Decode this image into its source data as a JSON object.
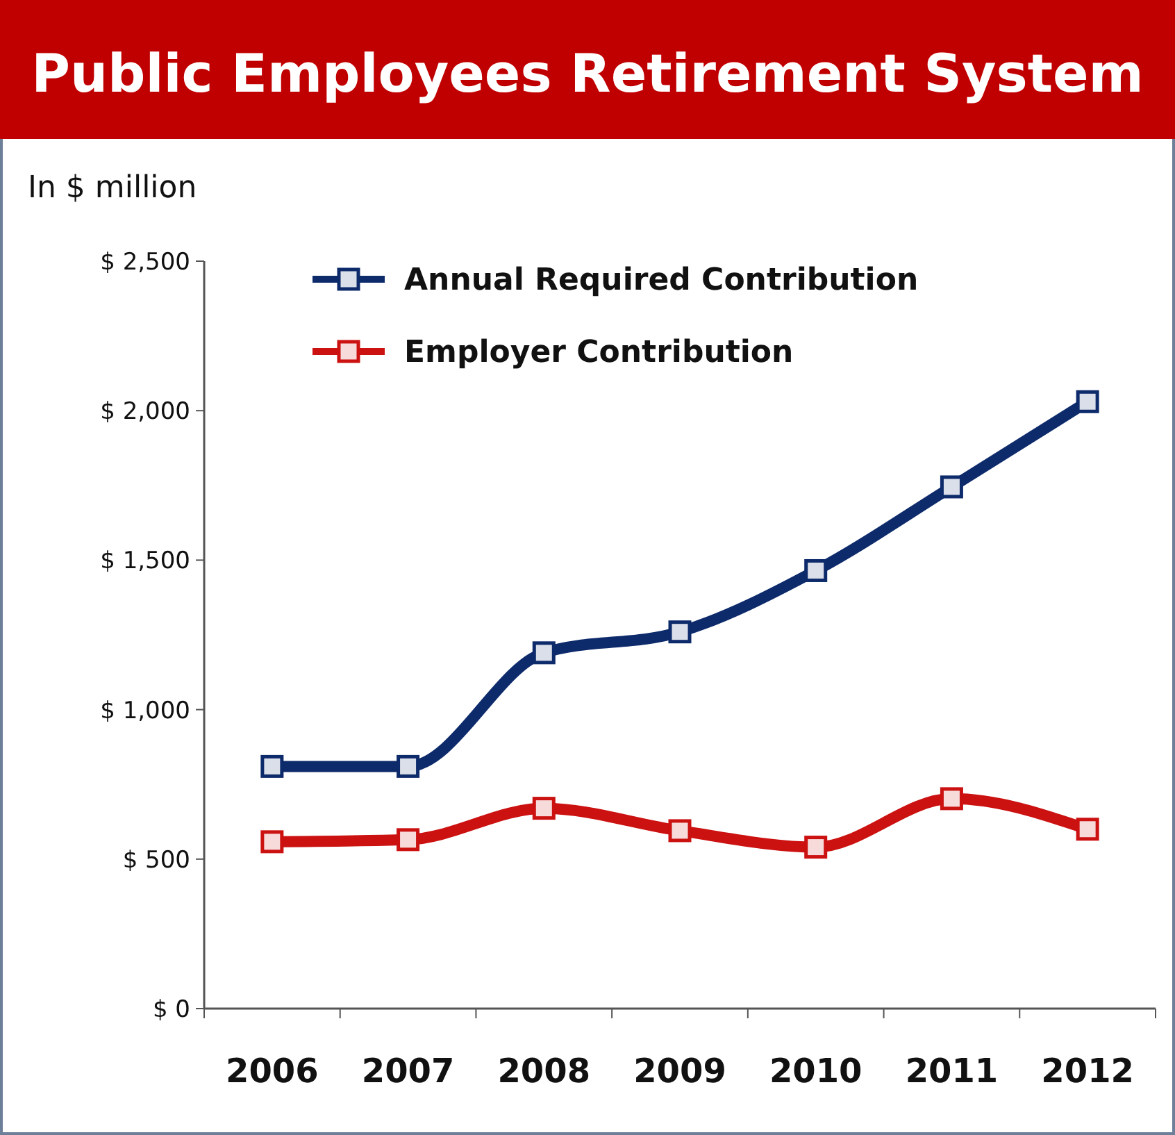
{
  "chart_data": {
    "type": "line",
    "title": "Public Employees Retirement System",
    "ylabel": "In $ million",
    "categories": [
      "2006",
      "2007",
      "2008",
      "2009",
      "2010",
      "2011",
      "2012"
    ],
    "series": [
      {
        "name": "Annual Required Contribution",
        "color": "#0d2a6b",
        "values": [
          810,
          810,
          1190,
          1260,
          1465,
          1745,
          2030
        ]
      },
      {
        "name": "Employer Contribution",
        "color": "#cc1111",
        "values": [
          558,
          565,
          670,
          595,
          540,
          702,
          600
        ]
      }
    ],
    "ylim": [
      0,
      2500
    ],
    "yticks": [
      {
        "value": 0,
        "label": "$ 0"
      },
      {
        "value": 500,
        "label": "$ 500"
      },
      {
        "value": 1000,
        "label": "$ 1,000"
      },
      {
        "value": 1500,
        "label": "$ 1,500"
      },
      {
        "value": 2000,
        "label": "$ 2,000"
      },
      {
        "value": 2500,
        "label": "$ 2,500"
      }
    ],
    "legend": "top left",
    "marker": "square",
    "line_style": "solid"
  }
}
